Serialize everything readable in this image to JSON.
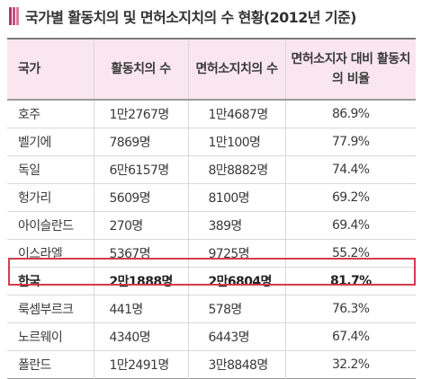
{
  "title": "국가별 활동치의 및 면허소지치의 수 현황(2012년 기준)",
  "header": {
    "country": "국가",
    "active": "활동치의 수",
    "licensed": "면허소지치의 수",
    "ratio": "면허소지자 대비 활동치의 비율"
  },
  "rows": [
    {
      "country": "호주",
      "active": "1만2767명",
      "licensed": "1만4687명",
      "ratio": "86.9%"
    },
    {
      "country": "벨기에",
      "active": "7869명",
      "licensed": "1만100명",
      "ratio": "77.9%"
    },
    {
      "country": "독일",
      "active": "6만6157명",
      "licensed": "8만8882명",
      "ratio": "74.4%"
    },
    {
      "country": "헝가리",
      "active": "5609명",
      "licensed": "8100명",
      "ratio": "69.2%"
    },
    {
      "country": "아이슬란드",
      "active": "270명",
      "licensed": "389명",
      "ratio": "69.4%"
    },
    {
      "country": "이스라엘",
      "active": "5367명",
      "licensed": "9725명",
      "ratio": "55.2%"
    },
    {
      "country": "한국",
      "active": "2만1888명",
      "licensed": "2만6804명",
      "ratio": "81.7%"
    },
    {
      "country": "룩셈부르크",
      "active": "441명",
      "licensed": "578명",
      "ratio": "76.3%"
    },
    {
      "country": "노르웨이",
      "active": "4340명",
      "licensed": "6443명",
      "ratio": "67.4%"
    },
    {
      "country": "폴란드",
      "active": "1만2491명",
      "licensed": "3만8848명",
      "ratio": "32.2%"
    }
  ],
  "highlighted_row": "한국",
  "colors": {
    "header_bg": "#fae6ef",
    "highlight_border": "#d43c4c",
    "title_accent": "#b4366a"
  }
}
